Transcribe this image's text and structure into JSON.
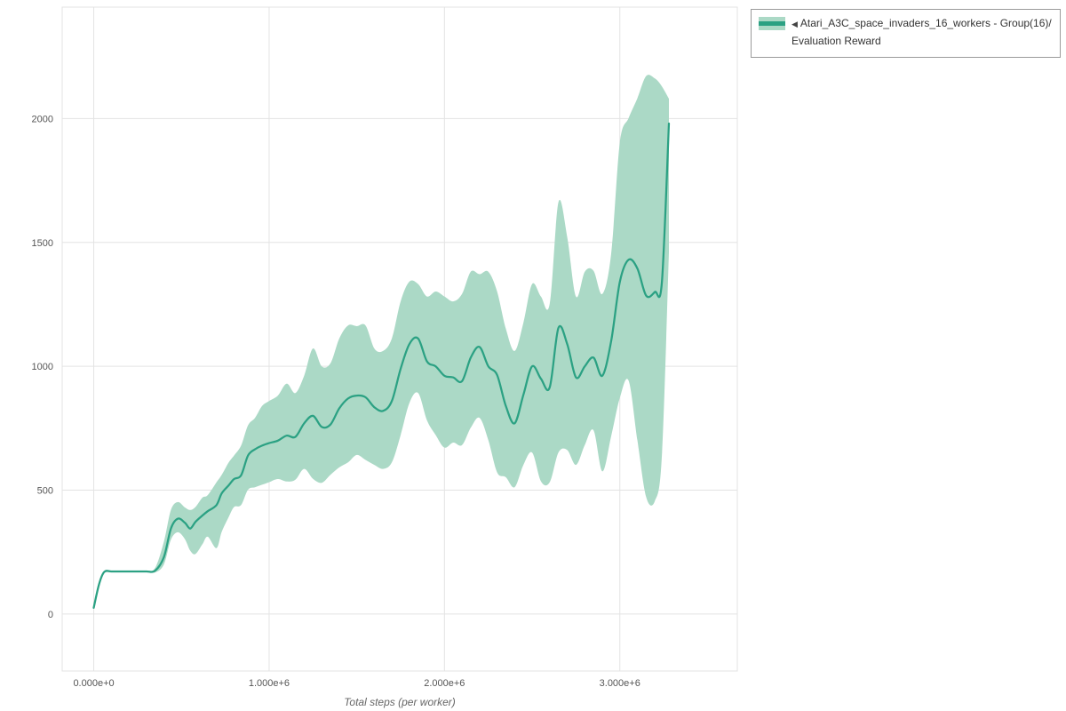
{
  "legend": {
    "toggle_icon": "◀",
    "series_label": "Atari_A3C_space_invaders_16_workers - Group(16)/",
    "metric_label": "Evaluation Reward"
  },
  "axes": {
    "x_label": "Total steps (per worker)",
    "x_tick_labels": [
      "0.000e+0",
      "1.000e+6",
      "2.000e+6",
      "3.000e+6"
    ],
    "y_tick_labels": [
      "0",
      "500",
      "1000",
      "1500",
      "2000"
    ]
  },
  "colors": {
    "line": "#2ba183",
    "band": "#abd9c6",
    "grid": "#e3e3e3",
    "tick_text": "#555555",
    "axis_title_text": "#666666",
    "legend_border": "#9a9a9a"
  },
  "chart_data": {
    "type": "line",
    "title": "",
    "xlabel": "Total steps (per worker)",
    "ylabel": "",
    "legend_position": "top-right",
    "grid": true,
    "xlim": [
      -180000,
      3670000
    ],
    "ylim": [
      -230,
      2450
    ],
    "x_ticks": {
      "values": [
        0,
        1000000,
        2000000,
        3000000
      ],
      "labels": [
        "0.000e+0",
        "1.000e+6",
        "2.000e+6",
        "3.000e+6"
      ]
    },
    "y_ticks": {
      "values": [
        0,
        500,
        1000,
        1500,
        2000
      ],
      "labels": [
        "0",
        "500",
        "1000",
        "1500",
        "2000"
      ]
    },
    "x": [
      0,
      30000,
      60000,
      100000,
      150000,
      200000,
      250000,
      300000,
      350000,
      400000,
      440000,
      480000,
      520000,
      550000,
      580000,
      620000,
      650000,
      700000,
      730000,
      770000,
      800000,
      840000,
      880000,
      920000,
      960000,
      1000000,
      1050000,
      1100000,
      1150000,
      1200000,
      1250000,
      1300000,
      1350000,
      1400000,
      1450000,
      1500000,
      1550000,
      1600000,
      1650000,
      1700000,
      1750000,
      1800000,
      1850000,
      1900000,
      1950000,
      2000000,
      2050000,
      2100000,
      2150000,
      2200000,
      2250000,
      2300000,
      2350000,
      2400000,
      2450000,
      2500000,
      2550000,
      2600000,
      2650000,
      2700000,
      2750000,
      2800000,
      2850000,
      2900000,
      2950000,
      3000000,
      3050000,
      3100000,
      3150000,
      3200000,
      3240000,
      3280000
    ],
    "series": [
      {
        "name": "Atari_A3C_space_invaders_16_workers - Group(16)/ Evaluation Reward",
        "mean": [
          25,
          120,
          170,
          172,
          172,
          172,
          172,
          172,
          175,
          230,
          345,
          385,
          368,
          345,
          372,
          398,
          415,
          440,
          487,
          520,
          545,
          560,
          640,
          665,
          680,
          690,
          700,
          720,
          715,
          770,
          800,
          755,
          765,
          830,
          870,
          882,
          875,
          835,
          820,
          860,
          990,
          1090,
          1112,
          1020,
          1000,
          962,
          955,
          940,
          1035,
          1078,
          1000,
          965,
          840,
          770,
          885,
          1000,
          950,
          915,
          1155,
          1090,
          955,
          1000,
          1035,
          962,
          1100,
          1340,
          1430,
          1395,
          1285,
          1300,
          1340,
          1980
        ],
        "upper": [
          30,
          130,
          174,
          172,
          172,
          172,
          172,
          172,
          186,
          292,
          420,
          452,
          430,
          420,
          432,
          470,
          480,
          532,
          562,
          612,
          640,
          680,
          762,
          792,
          840,
          860,
          882,
          930,
          892,
          962,
          1072,
          1000,
          1012,
          1112,
          1165,
          1162,
          1165,
          1072,
          1062,
          1112,
          1262,
          1342,
          1332,
          1282,
          1302,
          1282,
          1262,
          1292,
          1382,
          1372,
          1382,
          1302,
          1152,
          1062,
          1176,
          1332,
          1282,
          1252,
          1662,
          1522,
          1282,
          1382,
          1386,
          1292,
          1452,
          1902,
          2002,
          2082,
          2172,
          2162,
          2130,
          2080
        ],
        "lower": [
          20,
          110,
          166,
          172,
          172,
          172,
          172,
          172,
          168,
          200,
          300,
          330,
          302,
          256,
          242,
          282,
          312,
          266,
          332,
          392,
          432,
          440,
          502,
          512,
          522,
          532,
          545,
          535,
          542,
          586,
          546,
          530,
          562,
          592,
          612,
          642,
          622,
          602,
          586,
          612,
          722,
          852,
          892,
          782,
          722,
          672,
          692,
          682,
          752,
          792,
          702,
          572,
          552,
          512,
          602,
          652,
          536,
          532,
          652,
          662,
          602,
          682,
          742,
          576,
          716,
          872,
          942,
          702,
          472,
          456,
          640,
          1460
        ]
      }
    ]
  }
}
